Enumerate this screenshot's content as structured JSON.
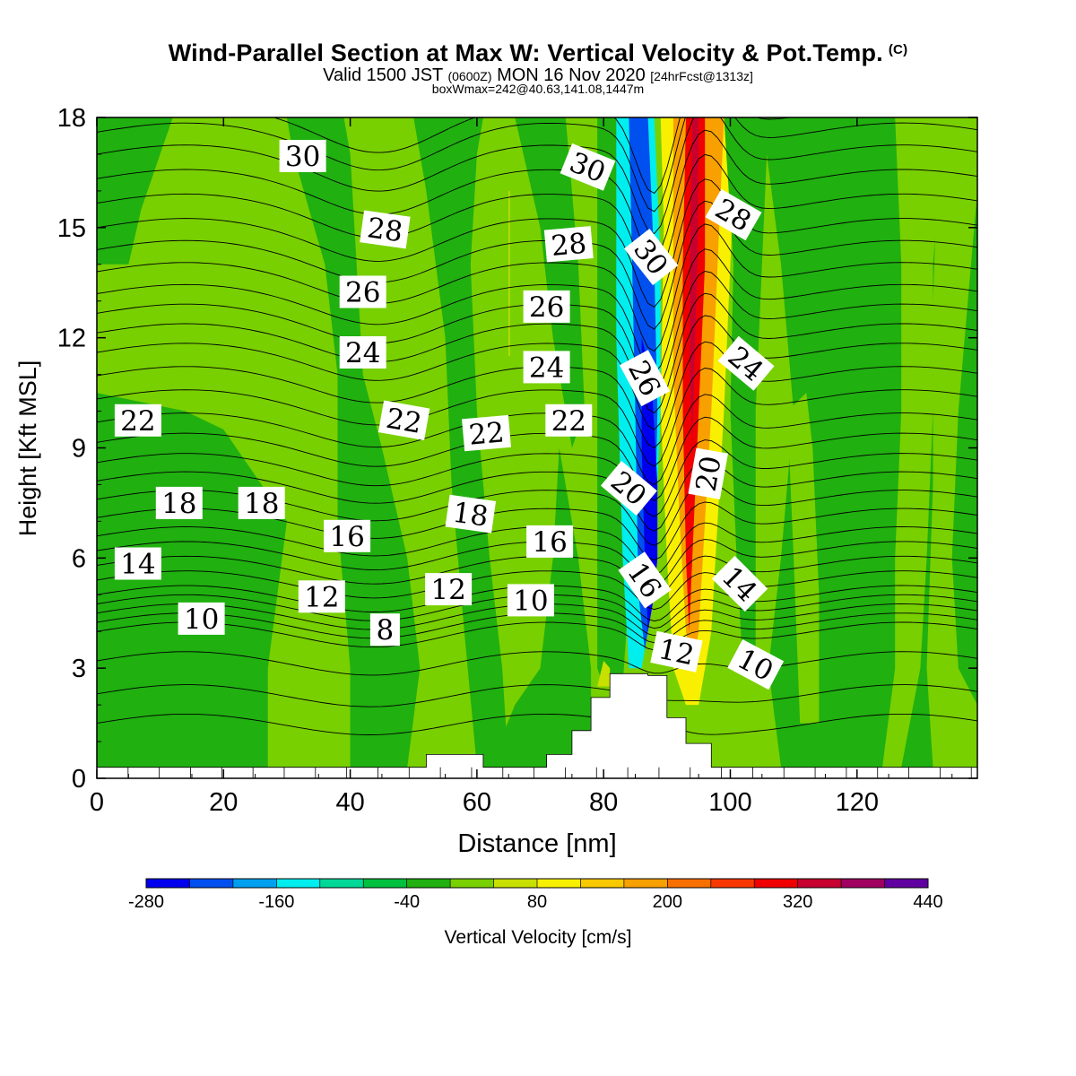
{
  "header": {
    "title": "Wind-Parallel Section at Max W: Vertical Velocity & Pot.Temp.",
    "copyright": "(C)",
    "valid_prefix": "Valid 1500 JST",
    "valid_utc": "(0600Z)",
    "valid_rest": "MON 16 Nov 2020",
    "forecast": "[24hrFcst@1313z]",
    "box_info": "boxWmax=242@40.63,141.08,1447m"
  },
  "chart_data": {
    "type": "heatmap",
    "xlabel": "Distance [nm]",
    "ylabel": "Height [Kft MSL]",
    "xlim": [
      0,
      139
    ],
    "ylim": [
      0,
      18
    ],
    "x_ticks": [
      0,
      20,
      40,
      60,
      80,
      100,
      120
    ],
    "y_ticks": [
      0,
      3,
      6,
      9,
      12,
      15,
      18
    ],
    "colorbar": {
      "label": "Vertical Velocity [cm/s]",
      "tick_labels": [
        "-280",
        "-160",
        "-40",
        "80",
        "200",
        "320",
        "440"
      ],
      "levels": [
        -280,
        -240,
        -200,
        -160,
        -120,
        -80,
        -40,
        0,
        40,
        80,
        120,
        160,
        200,
        240,
        280,
        320,
        360,
        400,
        440
      ],
      "colors": [
        "#0000ee",
        "#0050f0",
        "#00a0f0",
        "#00eeee",
        "#00d898",
        "#00c040",
        "#20b010",
        "#78d000",
        "#c8e000",
        "#f8f000",
        "#f8c800",
        "#f8a000",
        "#f87000",
        "#f83800",
        "#f00000",
        "#c80030",
        "#a00060",
        "#6000a0"
      ]
    },
    "background_value": 10,
    "regions": [
      {
        "name": "lower-left-green",
        "value": -10,
        "poly": [
          [
            0,
            0.3
          ],
          [
            27,
            0.3
          ],
          [
            27,
            3
          ],
          [
            30,
            7
          ],
          [
            20,
            9.5
          ],
          [
            14,
            10
          ],
          [
            0,
            10.5
          ]
        ]
      },
      {
        "name": "left-mid-green",
        "value": -10,
        "poly": [
          [
            40,
            0.3
          ],
          [
            49,
            0.3
          ],
          [
            51,
            3
          ],
          [
            49,
            6
          ],
          [
            45,
            9
          ],
          [
            42,
            11
          ],
          [
            41,
            14
          ],
          [
            40,
            17
          ],
          [
            39,
            18
          ],
          [
            30,
            18
          ],
          [
            31,
            17
          ],
          [
            36,
            14
          ],
          [
            38,
            11
          ],
          [
            38,
            7
          ],
          [
            40,
            3
          ]
        ]
      },
      {
        "name": "upper-left-green",
        "value": -10,
        "poly": [
          [
            0,
            18
          ],
          [
            12,
            18
          ],
          [
            10,
            17
          ],
          [
            7,
            15.5
          ],
          [
            5,
            14
          ],
          [
            0,
            14
          ]
        ]
      },
      {
        "name": "center-green-a",
        "value": -10,
        "poly": [
          [
            60,
            0.3
          ],
          [
            65,
            0.3
          ],
          [
            64,
            3
          ],
          [
            62,
            6
          ],
          [
            60,
            10
          ],
          [
            59,
            14
          ],
          [
            60,
            17
          ],
          [
            61,
            18
          ],
          [
            50,
            18
          ],
          [
            52,
            16
          ],
          [
            55,
            12
          ],
          [
            56,
            8
          ],
          [
            58,
            4
          ]
        ]
      },
      {
        "name": "center-green-b",
        "value": -10,
        "poly": [
          [
            62,
            0.3
          ],
          [
            78,
            0.3
          ],
          [
            78,
            3
          ],
          [
            76,
            6
          ],
          [
            73,
            9
          ],
          [
            72,
            6
          ],
          [
            70,
            3
          ],
          [
            66,
            2
          ]
        ]
      },
      {
        "name": "pre-updraft-green",
        "value": -10,
        "poly": [
          [
            66,
            18
          ],
          [
            74,
            18
          ],
          [
            76,
            14
          ],
          [
            77,
            10
          ],
          [
            75,
            9
          ],
          [
            72,
            12
          ],
          [
            70,
            15
          ]
        ]
      },
      {
        "name": "downdraft-edge-green",
        "value": -20,
        "poly": [
          [
            79,
            18
          ],
          [
            83,
            18
          ],
          [
            84,
            15
          ],
          [
            84,
            10
          ],
          [
            84,
            5
          ],
          [
            83,
            2.5
          ],
          [
            80,
            2.5
          ],
          [
            79,
            3
          ],
          [
            79,
            8
          ],
          [
            79,
            14
          ]
        ]
      },
      {
        "name": "downdraft-cyan",
        "value": -140,
        "poly": [
          [
            82,
            18
          ],
          [
            88,
            18
          ],
          [
            89,
            14
          ],
          [
            89,
            10
          ],
          [
            88,
            6
          ],
          [
            87,
            4
          ],
          [
            86,
            3
          ],
          [
            84,
            3
          ],
          [
            83,
            6
          ],
          [
            82,
            12
          ]
        ]
      },
      {
        "name": "downdraft-mid",
        "value": -210,
        "poly": [
          [
            84,
            18
          ],
          [
            87,
            18
          ],
          [
            88,
            14
          ],
          [
            88.5,
            10
          ],
          [
            88,
            6
          ],
          [
            87,
            4
          ],
          [
            86.5,
            3.5
          ],
          [
            85.5,
            5
          ],
          [
            85,
            10
          ],
          [
            84.5,
            14
          ]
        ]
      },
      {
        "name": "downdraft-core",
        "value": -270,
        "poly": [
          [
            86,
            12
          ],
          [
            87.5,
            11
          ],
          [
            88.5,
            8
          ],
          [
            88.5,
            6
          ],
          [
            88,
            5
          ],
          [
            87,
            4
          ],
          [
            86.5,
            6
          ],
          [
            86,
            9
          ]
        ]
      },
      {
        "name": "updraft-yellow",
        "value": 90,
        "poly": [
          [
            89,
            18
          ],
          [
            101,
            18
          ],
          [
            100,
            14
          ],
          [
            99,
            10
          ],
          [
            98,
            7
          ],
          [
            97,
            4
          ],
          [
            95,
            2
          ],
          [
            93,
            2
          ],
          [
            91,
            3
          ],
          [
            90,
            6
          ],
          [
            89,
            10
          ],
          [
            89.5,
            15
          ]
        ]
      },
      {
        "name": "updraft-orange",
        "value": 170,
        "poly": [
          [
            91,
            18
          ],
          [
            99,
            18
          ],
          [
            98,
            14
          ],
          [
            97,
            10
          ],
          [
            96,
            7
          ],
          [
            95,
            4
          ],
          [
            94,
            3
          ],
          [
            93,
            4
          ],
          [
            92,
            7
          ],
          [
            91,
            11
          ],
          [
            91,
            15
          ]
        ]
      },
      {
        "name": "updraft-red",
        "value": 300,
        "poly": [
          [
            93,
            18
          ],
          [
            96,
            18
          ],
          [
            96,
            14
          ],
          [
            95,
            10
          ],
          [
            94,
            6
          ],
          [
            93.5,
            4
          ],
          [
            93,
            6
          ],
          [
            92.5,
            10
          ],
          [
            92.5,
            14
          ]
        ]
      },
      {
        "name": "updraft-core",
        "value": 340,
        "poly": [
          [
            94,
            18
          ],
          [
            95,
            18
          ],
          [
            94.8,
            14
          ],
          [
            94.3,
            11
          ],
          [
            94,
            9
          ],
          [
            93.6,
            11
          ],
          [
            93.6,
            14
          ]
        ]
      },
      {
        "name": "post-updraft-green",
        "value": -20,
        "poly": [
          [
            99,
            18
          ],
          [
            106,
            18
          ],
          [
            105,
            14
          ],
          [
            104,
            10
          ],
          [
            104,
            6
          ],
          [
            104,
            3
          ],
          [
            102,
            3
          ],
          [
            101,
            6
          ],
          [
            100,
            10
          ],
          [
            100.5,
            14
          ]
        ]
      },
      {
        "name": "right-green-a",
        "value": -10,
        "poly": [
          [
            105,
            18
          ],
          [
            126,
            18
          ],
          [
            127,
            14
          ],
          [
            127,
            10
          ],
          [
            126,
            6
          ],
          [
            126,
            3
          ],
          [
            124,
            0.3
          ],
          [
            108,
            0.3
          ],
          [
            106,
            3
          ],
          [
            108,
            6
          ],
          [
            110,
            10
          ],
          [
            108,
            14
          ]
        ]
      },
      {
        "name": "right-yellowgreen",
        "value": 10,
        "poly": [
          [
            111,
            1.5
          ],
          [
            114,
            1.5
          ],
          [
            114,
            5
          ],
          [
            113,
            9
          ],
          [
            112,
            10.5
          ],
          [
            109,
            10
          ],
          [
            110,
            6
          ]
        ]
      },
      {
        "name": "right-green-b",
        "value": -10,
        "poly": [
          [
            127,
            0.3
          ],
          [
            139,
            0.3
          ],
          [
            139,
            18
          ],
          [
            134,
            18
          ],
          [
            132,
            14
          ],
          [
            132,
            10
          ],
          [
            131,
            6
          ],
          [
            130,
            3
          ]
        ]
      },
      {
        "name": "far-right-yellowgreen",
        "value": 10,
        "poly": [
          [
            133,
            18
          ],
          [
            139,
            18
          ],
          [
            139,
            16
          ],
          [
            136,
            10
          ],
          [
            135,
            6
          ],
          [
            136,
            3
          ],
          [
            139,
            2
          ],
          [
            139,
            0.3
          ],
          [
            132,
            0.3
          ],
          [
            131,
            3
          ],
          [
            132,
            8
          ],
          [
            132,
            13
          ]
        ]
      },
      {
        "name": "yellow-streak",
        "value": 70,
        "poly": [
          [
            65,
            16
          ],
          [
            65.2,
            16
          ],
          [
            65.2,
            11.5
          ],
          [
            65,
            11.5
          ]
        ]
      },
      {
        "name": "low-yellow",
        "value": 60,
        "poly": [
          [
            79,
            2.5
          ],
          [
            81,
            2.5
          ],
          [
            81,
            3
          ],
          [
            80,
            3.2
          ]
        ]
      }
    ],
    "terrain": [
      [
        0,
        0.3
      ],
      [
        52,
        0.3
      ],
      [
        52,
        0.65
      ],
      [
        61,
        0.65
      ],
      [
        61,
        0.3
      ],
      [
        71,
        0.3
      ],
      [
        71,
        0.65
      ],
      [
        75,
        0.65
      ],
      [
        75,
        1.3
      ],
      [
        78,
        1.3
      ],
      [
        78,
        2.2
      ],
      [
        81,
        2.2
      ],
      [
        81,
        2.85
      ],
      [
        87,
        2.85
      ],
      [
        87,
        2.8
      ],
      [
        90,
        2.8
      ],
      [
        90,
        1.65
      ],
      [
        93,
        1.65
      ],
      [
        93,
        0.95
      ],
      [
        97,
        0.95
      ],
      [
        97,
        0.3
      ],
      [
        139,
        0.3
      ],
      [
        139,
        0
      ],
      [
        0,
        0
      ]
    ],
    "theta_contours": [
      {
        "label": "8",
        "y": 4.0
      },
      {
        "label": "10",
        "y": 4.5
      },
      {
        "label": "12",
        "y": 5.0
      },
      {
        "label": "14",
        "y": 5.8
      },
      {
        "label": "16",
        "y": 6.6
      },
      {
        "label": "18",
        "y": 7.6
      },
      {
        "label": "20",
        "y": 8.6
      },
      {
        "label": "22",
        "y": 9.7
      },
      {
        "label": "24",
        "y": 11.6
      },
      {
        "label": "26",
        "y": 13.2
      },
      {
        "label": "28",
        "y": 15.0
      },
      {
        "label": "30",
        "y": 17.0
      }
    ],
    "contour_labels": [
      {
        "text": "30",
        "x": 32.5,
        "y": 16.95,
        "rot": 0
      },
      {
        "text": "30",
        "x": 77.5,
        "y": 16.65,
        "rot": 22
      },
      {
        "text": "30",
        "x": 87.5,
        "y": 14.2,
        "rot": 52
      },
      {
        "text": "28",
        "x": 45.5,
        "y": 14.95,
        "rot": 8
      },
      {
        "text": "28",
        "x": 74.5,
        "y": 14.55,
        "rot": -5
      },
      {
        "text": "28",
        "x": 100.5,
        "y": 15.35,
        "rot": 30
      },
      {
        "text": "26",
        "x": 42,
        "y": 13.25,
        "rot": 0
      },
      {
        "text": "26",
        "x": 71,
        "y": 12.85,
        "rot": 0
      },
      {
        "text": "26",
        "x": 86.5,
        "y": 10.9,
        "rot": 62
      },
      {
        "text": "24",
        "x": 42,
        "y": 11.6,
        "rot": 0
      },
      {
        "text": "24",
        "x": 71,
        "y": 11.2,
        "rot": 0
      },
      {
        "text": "24",
        "x": 102.5,
        "y": 11.3,
        "rot": 40
      },
      {
        "text": "22",
        "x": 6.5,
        "y": 9.75,
        "rot": 0
      },
      {
        "text": "22",
        "x": 48.5,
        "y": 9.75,
        "rot": 10
      },
      {
        "text": "22",
        "x": 61.5,
        "y": 9.4,
        "rot": -5
      },
      {
        "text": "22",
        "x": 74.5,
        "y": 9.75,
        "rot": 0
      },
      {
        "text": "20",
        "x": 84,
        "y": 7.9,
        "rot": 40
      },
      {
        "text": "20",
        "x": 96.5,
        "y": 8.3,
        "rot": -80
      },
      {
        "text": "18",
        "x": 13,
        "y": 7.5,
        "rot": 0
      },
      {
        "text": "18",
        "x": 26,
        "y": 7.5,
        "rot": 0
      },
      {
        "text": "18",
        "x": 59,
        "y": 7.2,
        "rot": 8
      },
      {
        "text": "16",
        "x": 39.5,
        "y": 6.6,
        "rot": 0
      },
      {
        "text": "16",
        "x": 71.5,
        "y": 6.45,
        "rot": 0
      },
      {
        "text": "16",
        "x": 86.5,
        "y": 5.4,
        "rot": 55
      },
      {
        "text": "14",
        "x": 6.5,
        "y": 5.85,
        "rot": 0
      },
      {
        "text": "14",
        "x": 101.5,
        "y": 5.3,
        "rot": 45
      },
      {
        "text": "12",
        "x": 35.5,
        "y": 4.95,
        "rot": 0
      },
      {
        "text": "12",
        "x": 55.5,
        "y": 5.15,
        "rot": 0
      },
      {
        "text": "12",
        "x": 91.5,
        "y": 3.45,
        "rot": 12
      },
      {
        "text": "10",
        "x": 16.5,
        "y": 4.35,
        "rot": 0
      },
      {
        "text": "10",
        "x": 68.5,
        "y": 4.85,
        "rot": 0
      },
      {
        "text": "10",
        "x": 104,
        "y": 3.1,
        "rot": 28
      },
      {
        "text": "8",
        "x": 45.5,
        "y": 4.05,
        "rot": 0
      }
    ]
  }
}
